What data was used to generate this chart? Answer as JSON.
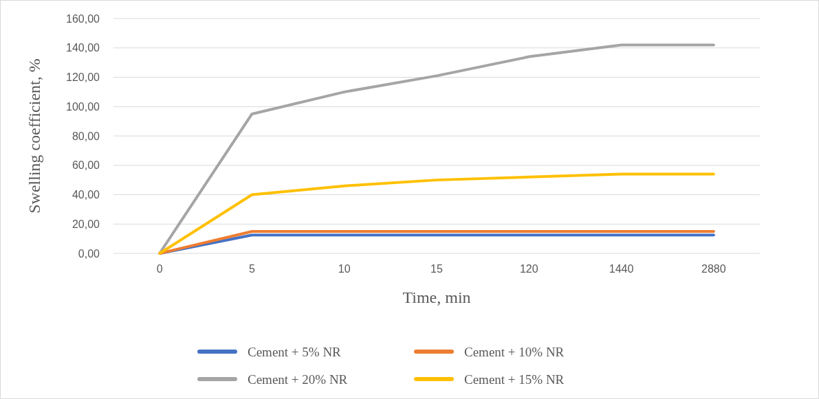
{
  "chart_data": {
    "type": "line",
    "xlabel": "Time, min",
    "ylabel": "Swelling coefficient, %",
    "categories": [
      "0",
      "5",
      "10",
      "15",
      "120",
      "1440",
      "2880"
    ],
    "series": [
      {
        "name": "Cement + 5% NR",
        "color": "#4472c4",
        "values": [
          0,
          12.5,
          12.5,
          12.5,
          12.5,
          12.5,
          12.5
        ]
      },
      {
        "name": "Cement + 10% NR",
        "color": "#ed7d31",
        "values": [
          0,
          15,
          15,
          15,
          15,
          15,
          15
        ]
      },
      {
        "name": "Cement + 20% NR",
        "color": "#a5a5a5",
        "values": [
          0,
          95,
          110,
          121,
          134,
          142,
          142
        ]
      },
      {
        "name": "Cement + 15% NR",
        "color": "#ffc000",
        "values": [
          0,
          40,
          46,
          50,
          52,
          54,
          54
        ]
      }
    ],
    "ylim": [
      0,
      160
    ],
    "yticks": [
      {
        "value": 0,
        "label": "0,00"
      },
      {
        "value": 20,
        "label": "20,00"
      },
      {
        "value": 40,
        "label": "40,00"
      },
      {
        "value": 60,
        "label": "60,00"
      },
      {
        "value": 80,
        "label": "80,00"
      },
      {
        "value": 100,
        "label": "100,00"
      },
      {
        "value": 120,
        "label": "120,00"
      },
      {
        "value": 140,
        "label": "140,00"
      },
      {
        "value": 160,
        "label": "160,00"
      }
    ],
    "grid": "y",
    "legend": "bottom",
    "marker": "none",
    "line_style": "solid"
  }
}
